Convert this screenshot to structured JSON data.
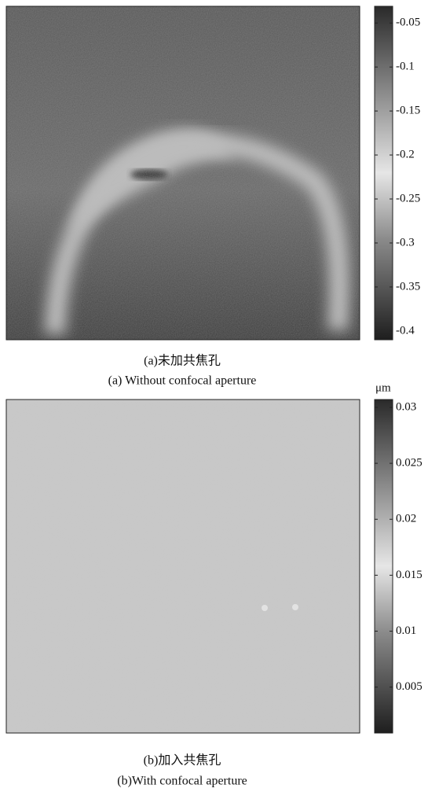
{
  "chart_data": [
    {
      "type": "heatmap",
      "caption": "(a)未加共焦孔",
      "caption_en": "(a) Without confocal aperture",
      "zlim": [
        -0.41,
        -0.031
      ],
      "zticks": [
        -0.05,
        -0.1,
        -0.15,
        -0.2,
        -0.25,
        -0.3,
        -0.35,
        -0.4
      ]
    },
    {
      "type": "heatmap",
      "caption": "(b)加入共焦孔",
      "caption_en": "(b)With confocal aperture",
      "zlabel": "μm",
      "zlim": [
        0.0009,
        0.0307
      ],
      "zticks": [
        0.03,
        0.025,
        0.02,
        0.015,
        0.01,
        0.005
      ]
    }
  ]
}
